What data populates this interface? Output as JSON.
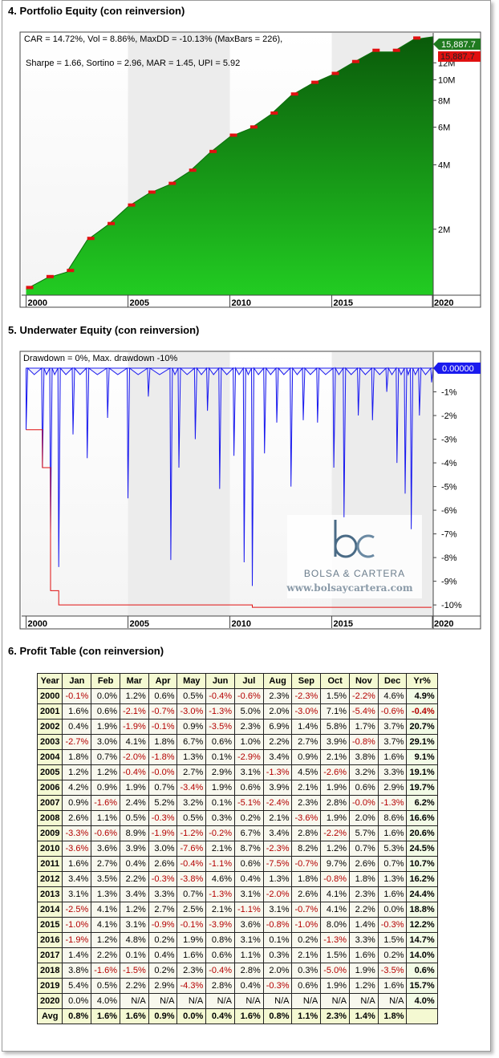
{
  "sections": {
    "equity_title": "4. Portfolio Equity (con reinversion)",
    "underwater_title": "5. Underwater Equity (con reinversion)",
    "profit_title": "6. Profit Table (con reinversion)"
  },
  "equity": {
    "annotation_line1": "CAR = 14.72%, Vol = 8.86%, MaxDD = -10.13% (MaxBars = 226),",
    "annotation_line2": "Sharpe = 1.66, Sortino = 2.96, MAR = 1.45, UPI = 5.92",
    "last_value_label": "15,887.7",
    "last_value_label_red": "15,887.7",
    "y_tick_labels": [
      "12M",
      "10M",
      "8M",
      "6M",
      "4M",
      "2M"
    ],
    "x_tick_labels": [
      "2000",
      "2005",
      "2010",
      "2015",
      "2020"
    ]
  },
  "underwater": {
    "annotation": "Drawdown = 0%, Max. drawdown -10%",
    "last_value_label": "0.00000",
    "y_tick_labels": [
      "-1%",
      "-2%",
      "-3%",
      "-4%",
      "-5%",
      "-6%",
      "-7%",
      "-8%",
      "-9%",
      "-10%"
    ],
    "x_tick_labels": [
      "2000",
      "2005",
      "2010",
      "2015",
      "2020"
    ],
    "logo_letters": "bc",
    "logo_name": "BOLSA & CARTERA",
    "logo_url": "www.bolsaycartera.com"
  },
  "colors": {
    "equity_fill": "#1fb81f",
    "equity_dark": "#0a6e0a",
    "drawdown_red": "#e01010",
    "underwater_blue": "#1a1aee",
    "label_green": "#1f7a1f",
    "label_red": "#e01010",
    "label_blue": "#1a1aee"
  },
  "chart_data": [
    {
      "type": "area",
      "title": "4. Portfolio Equity (con reinversion)",
      "y_scale": "log",
      "x": [
        2000,
        2001,
        2002,
        2003,
        2004,
        2005,
        2006,
        2007,
        2008,
        2009,
        2010,
        2011,
        2012,
        2013,
        2014,
        2015,
        2016,
        2017,
        2018,
        2019,
        2020
      ],
      "series": [
        {
          "values": [
            1.05,
            1.18,
            1.26,
            1.78,
            2.09,
            2.55,
            2.93,
            3.22,
            3.71,
            4.54,
            5.41,
            5.91,
            6.87,
            8.43,
            9.56,
            10.52,
            11.96,
            13.5,
            13.5,
            15.4,
            15.9
          ]
        }
      ],
      "ylim": [
        1,
        16
      ],
      "y_unit": "M",
      "xlim": [
        1999.9,
        2019.9
      ],
      "grid": false
    },
    {
      "type": "area",
      "title": "5. Underwater Equity (con reinversion)",
      "x": [
        2000,
        2000.8,
        2001.2,
        2001.6,
        2002.3,
        2003,
        2004,
        2005,
        2006,
        2007.1,
        2007.5,
        2008.3,
        2008.9,
        2009.5,
        2010.2,
        2010.7,
        2011.1,
        2011.7,
        2012.3,
        2013,
        2013.6,
        2014.3,
        2015.1,
        2015.6,
        2016.3,
        2017,
        2017.7,
        2018.2,
        2018.6,
        2018.9,
        2019.3,
        2019.9
      ],
      "series": [
        {
          "name": "Drawdown",
          "values": [
            -2.6,
            -4.2,
            -7.0,
            -8.4,
            -2.8,
            -3.8,
            -2.1,
            -5.5,
            -1.2,
            -8.1,
            -4.2,
            -3.0,
            -1.8,
            -5.1,
            -3.7,
            -8.2,
            -9.2,
            -3.6,
            -2.3,
            -5.0,
            -2.2,
            -2.3,
            -4.2,
            -6.3,
            -2.0,
            -2.2,
            -1.0,
            -4.0,
            -5.3,
            -6.8,
            -2.0,
            -0.6
          ]
        },
        {
          "name": "Max. drawdown",
          "values": [
            -2.6,
            -4.2,
            -9.4,
            -10.0,
            -10.0,
            -10.0,
            -10.0,
            -10.0,
            -10.0,
            -10.0,
            -10.0,
            -10.0,
            -10.0,
            -10.0,
            -10.0,
            -10.0,
            -10.1,
            -10.1,
            -10.1,
            -10.1,
            -10.1,
            -10.1,
            -10.1,
            -10.1,
            -10.1,
            -10.1,
            -10.1,
            -10.1,
            -10.1,
            -10.1,
            -10.1,
            -10.1
          ]
        }
      ],
      "ylim": [
        -10.3,
        0
      ],
      "xlim": [
        1999.9,
        2019.9
      ]
    }
  ],
  "profit_table": {
    "headers": [
      "Year",
      "Jan",
      "Feb",
      "Mar",
      "Apr",
      "May",
      "Jun",
      "Jul",
      "Aug",
      "Sep",
      "Oct",
      "Nov",
      "Dec",
      "Yr%"
    ],
    "rows": [
      [
        "2000",
        "-0.1%",
        "0.0%",
        "1.2%",
        "0.6%",
        "0.5%",
        "-0.4%",
        "-0.6%",
        "2.3%",
        "-2.3%",
        "1.5%",
        "-2.2%",
        "4.6%",
        "4.9%"
      ],
      [
        "2001",
        "1.6%",
        "0.6%",
        "-2.1%",
        "-0.7%",
        "-3.0%",
        "-1.3%",
        "5.0%",
        "2.0%",
        "-3.0%",
        "7.1%",
        "-5.4%",
        "-0.6%",
        "-0.4%"
      ],
      [
        "2002",
        "0.4%",
        "1.9%",
        "-1.9%",
        "-0.1%",
        "0.9%",
        "-3.5%",
        "2.3%",
        "6.9%",
        "1.4%",
        "5.8%",
        "1.7%",
        "3.7%",
        "20.7%"
      ],
      [
        "2003",
        "-2.7%",
        "3.0%",
        "4.1%",
        "1.8%",
        "6.7%",
        "0.6%",
        "1.0%",
        "2.2%",
        "2.7%",
        "3.9%",
        "-0.8%",
        "3.7%",
        "29.1%"
      ],
      [
        "2004",
        "1.8%",
        "0.7%",
        "-2.0%",
        "-1.8%",
        "1.3%",
        "0.1%",
        "-2.9%",
        "3.4%",
        "0.9%",
        "2.1%",
        "3.8%",
        "1.6%",
        "9.1%"
      ],
      [
        "2005",
        "1.2%",
        "1.2%",
        "-0.4%",
        "-0.0%",
        "2.7%",
        "2.9%",
        "3.1%",
        "-1.3%",
        "4.5%",
        "-2.6%",
        "3.2%",
        "3.3%",
        "19.1%"
      ],
      [
        "2006",
        "4.2%",
        "0.9%",
        "1.9%",
        "0.7%",
        "-3.4%",
        "1.9%",
        "0.6%",
        "3.9%",
        "2.1%",
        "1.9%",
        "0.6%",
        "2.9%",
        "19.7%"
      ],
      [
        "2007",
        "0.9%",
        "-1.6%",
        "2.4%",
        "5.2%",
        "3.2%",
        "0.1%",
        "-5.1%",
        "-2.4%",
        "2.3%",
        "2.8%",
        "-0.0%",
        "-1.3%",
        "6.2%"
      ],
      [
        "2008",
        "2.6%",
        "1.1%",
        "0.5%",
        "-0.3%",
        "0.5%",
        "0.3%",
        "0.2%",
        "2.1%",
        "-3.6%",
        "1.9%",
        "2.0%",
        "8.6%",
        "16.6%"
      ],
      [
        "2009",
        "-3.3%",
        "-0.6%",
        "8.9%",
        "-1.9%",
        "-1.2%",
        "-0.2%",
        "6.7%",
        "3.4%",
        "2.8%",
        "-2.2%",
        "5.7%",
        "1.6%",
        "20.6%"
      ],
      [
        "2010",
        "-3.6%",
        "3.6%",
        "3.9%",
        "3.0%",
        "-7.6%",
        "2.1%",
        "8.7%",
        "-2.3%",
        "8.2%",
        "1.2%",
        "0.7%",
        "5.3%",
        "24.5%"
      ],
      [
        "2011",
        "1.6%",
        "2.7%",
        "0.4%",
        "2.6%",
        "-0.4%",
        "-1.1%",
        "0.6%",
        "-7.5%",
        "-0.7%",
        "9.7%",
        "2.6%",
        "0.7%",
        "10.7%"
      ],
      [
        "2012",
        "3.4%",
        "3.5%",
        "2.2%",
        "-0.3%",
        "-3.8%",
        "4.6%",
        "0.4%",
        "1.3%",
        "1.8%",
        "-0.8%",
        "1.8%",
        "1.3%",
        "16.2%"
      ],
      [
        "2013",
        "3.1%",
        "1.3%",
        "3.4%",
        "3.3%",
        "0.7%",
        "-1.3%",
        "3.1%",
        "-2.0%",
        "2.6%",
        "4.1%",
        "2.3%",
        "1.6%",
        "24.4%"
      ],
      [
        "2014",
        "-2.5%",
        "4.1%",
        "1.2%",
        "2.7%",
        "2.5%",
        "2.1%",
        "-1.1%",
        "3.1%",
        "-0.7%",
        "4.1%",
        "2.2%",
        "0.0%",
        "18.8%"
      ],
      [
        "2015",
        "-1.0%",
        "4.1%",
        "3.1%",
        "-0.9%",
        "-0.1%",
        "-3.9%",
        "3.6%",
        "-0.8%",
        "-1.0%",
        "8.0%",
        "1.4%",
        "-0.3%",
        "12.2%"
      ],
      [
        "2016",
        "-1.9%",
        "1.2%",
        "4.8%",
        "0.2%",
        "1.9%",
        "0.8%",
        "3.1%",
        "0.1%",
        "0.2%",
        "-1.3%",
        "3.3%",
        "1.5%",
        "14.7%"
      ],
      [
        "2017",
        "1.4%",
        "2.2%",
        "0.1%",
        "0.4%",
        "1.6%",
        "0.6%",
        "1.1%",
        "0.3%",
        "2.1%",
        "1.5%",
        "1.6%",
        "0.2%",
        "14.0%"
      ],
      [
        "2018",
        "3.8%",
        "-1.6%",
        "-1.5%",
        "0.2%",
        "2.3%",
        "-0.4%",
        "2.8%",
        "2.0%",
        "0.3%",
        "-5.0%",
        "1.9%",
        "-3.5%",
        "0.6%"
      ],
      [
        "2019",
        "5.4%",
        "0.5%",
        "2.2%",
        "2.9%",
        "-4.3%",
        "2.8%",
        "0.4%",
        "-0.3%",
        "0.6%",
        "1.9%",
        "1.2%",
        "1.6%",
        "15.7%"
      ],
      [
        "2020",
        "0.0%",
        "4.0%",
        "N/A",
        "N/A",
        "N/A",
        "N/A",
        "N/A",
        "N/A",
        "N/A",
        "N/A",
        "N/A",
        "N/A",
        "4.0%"
      ]
    ],
    "avg_row": [
      "Avg",
      "0.8%",
      "1.6%",
      "1.6%",
      "0.9%",
      "0.0%",
      "0.4%",
      "1.6%",
      "0.8%",
      "1.1%",
      "2.3%",
      "1.4%",
      "1.8%",
      ""
    ]
  }
}
